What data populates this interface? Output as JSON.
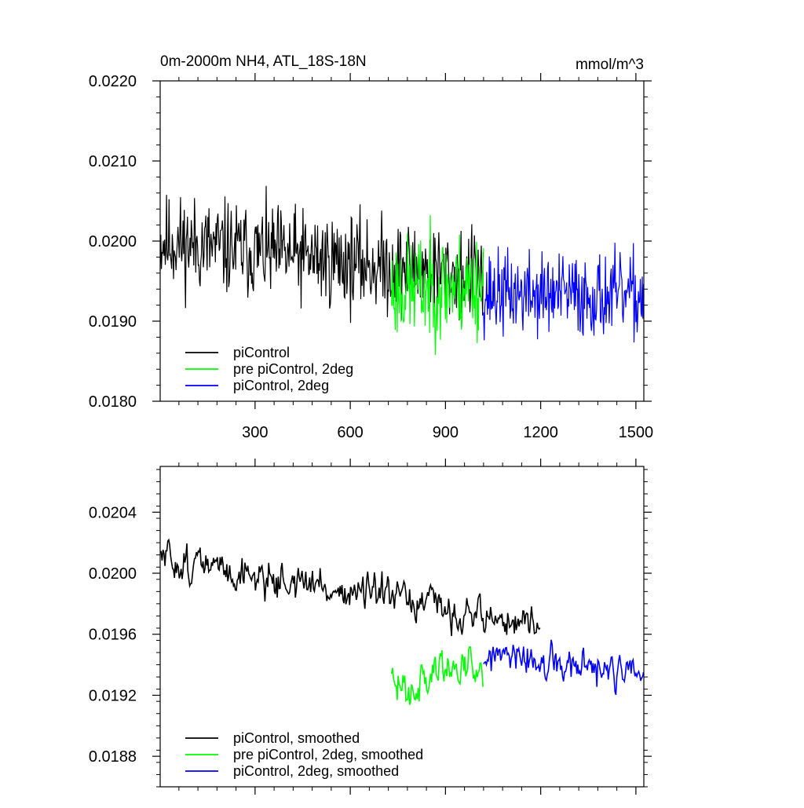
{
  "chart_data": [
    {
      "type": "line",
      "title": "0m-2000m NH4, ATL_18S-18N",
      "units": "mmol/m^3",
      "xlim": [
        1,
        1525
      ],
      "ylim": [
        0.018,
        0.022
      ],
      "xticks": [
        300,
        600,
        900,
        1200,
        1500
      ],
      "xtick_labels": [
        "300",
        "600",
        "900",
        "1200",
        "1500"
      ],
      "yticks": [
        0.018,
        0.019,
        0.02,
        0.021,
        0.022
      ],
      "ytick_labels": [
        "0.0180",
        "0.0190",
        "0.0200",
        "0.0210",
        "0.0220"
      ],
      "grid": false,
      "legend_position": "bottom-left",
      "series": [
        {
          "name": "piControl",
          "color": "#000000",
          "x_start": 1,
          "x_end": 1020,
          "mean_start": 0.02,
          "mean_end": 0.01955,
          "noise": 0.00045,
          "seed": 11
        },
        {
          "name": "pre piControl, 2deg",
          "color": "#00ff00",
          "x_start": 730,
          "x_end": 1020,
          "mean_start": 0.0194,
          "mean_end": 0.01945,
          "noise": 0.0005,
          "seed": 23
        },
        {
          "name": "piControl, 2deg",
          "color": "#0000ff",
          "x_start": 1020,
          "x_end": 1525,
          "mean_start": 0.01935,
          "mean_end": 0.0193,
          "noise": 0.0004,
          "seed": 37
        }
      ]
    },
    {
      "type": "line",
      "title": "",
      "xlim": [
        1,
        1525
      ],
      "ylim": [
        0.0186,
        0.0207
      ],
      "xticks": [
        300,
        600,
        900,
        1200,
        1500
      ],
      "xtick_labels": [],
      "yticks": [
        0.0188,
        0.0192,
        0.0196,
        0.02,
        0.0204
      ],
      "ytick_labels": [
        "0.0188",
        "0.0192",
        "0.0196",
        "0.0200",
        "0.0204"
      ],
      "grid": false,
      "legend_position": "bottom-left",
      "series": [
        {
          "name": "piControl, smoothed",
          "color": "#000000",
          "x_start": 1,
          "x_end": 1200,
          "mean_start": 0.0201,
          "mean_end": 0.01965,
          "noise": 0.00018,
          "seed": 51
        },
        {
          "name": "pre piControl, 2deg, smoothed",
          "color": "#00ff00",
          "x_start": 730,
          "x_end": 1020,
          "mean_start": 0.01925,
          "mean_end": 0.01945,
          "noise": 0.00022,
          "seed": 63
        },
        {
          "name": "piControl, 2deg, smoothed",
          "color": "#0000ff",
          "x_start": 1020,
          "x_end": 1525,
          "mean_start": 0.01945,
          "mean_end": 0.01932,
          "noise": 0.00018,
          "seed": 77
        }
      ]
    }
  ]
}
